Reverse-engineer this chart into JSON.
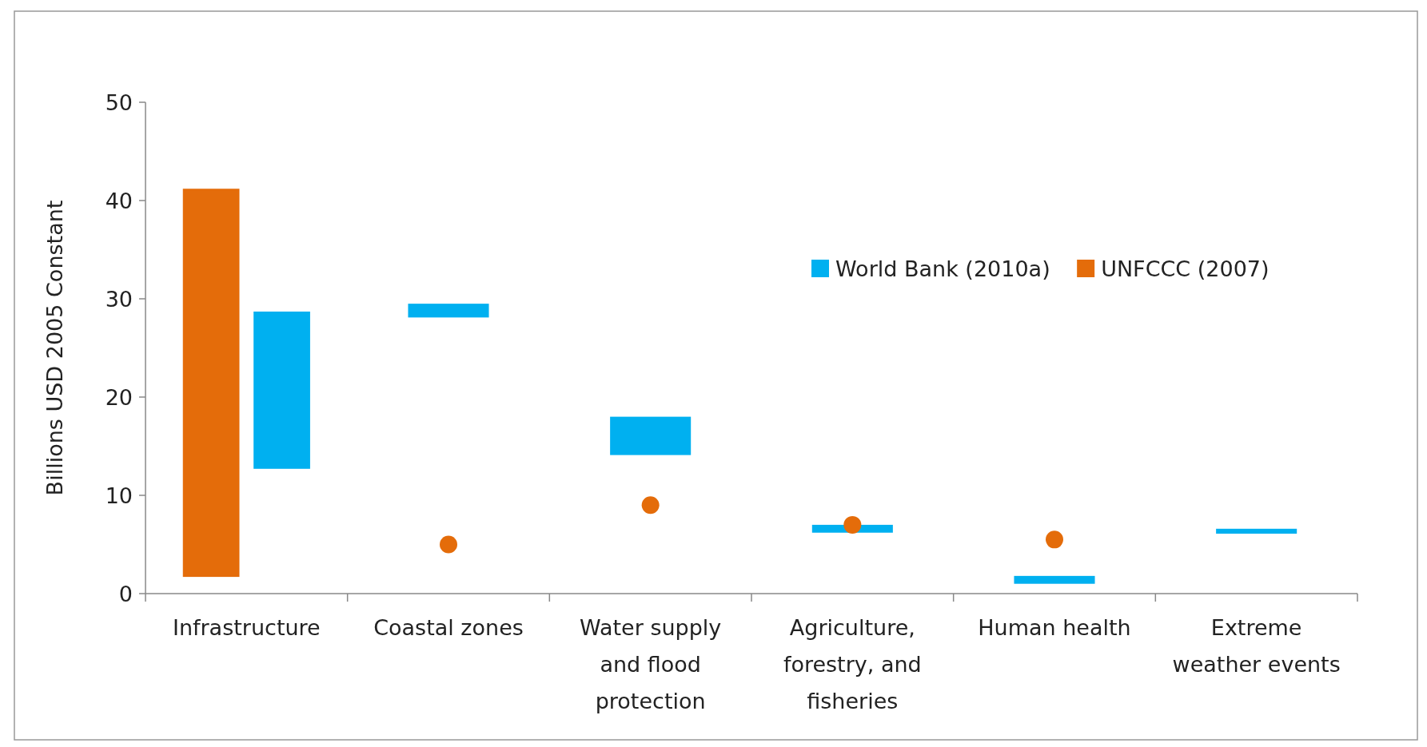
{
  "chart_data": {
    "type": "bar",
    "ylabel": "Billions USD 2005 Constant",
    "categories": [
      "Infrastructure",
      "Coastal zones",
      "Water supply and flood protection",
      "Agriculture, forestry, and fisheries",
      "Human health",
      "Extreme weather events"
    ],
    "series": [
      {
        "name": "UNFCCC (2007)",
        "color": "#e46c0a",
        "values": [
          39.5,
          null,
          null,
          null,
          null,
          null
        ],
        "base": [
          1.7,
          null,
          null,
          null,
          null,
          null
        ]
      },
      {
        "name": "World Bank (2010a)",
        "color": "#00b0f0",
        "values": [
          16,
          1.4,
          3.9,
          0.8,
          0.8,
          0.5
        ],
        "base": [
          12.7,
          28.1,
          14.1,
          6.2,
          1.0,
          6.1
        ]
      },
      {
        "type": "scatter",
        "color": "#e46c0a",
        "x": [
          "Coastal zones",
          "Water supply and flood protection",
          "Agriculture, forestry, and fisheries",
          "Human health"
        ],
        "values": [
          5.0,
          9.0,
          7.0,
          5.5
        ]
      }
    ],
    "ylim": [
      0,
      50
    ],
    "yticks": [
      0,
      10,
      20,
      30,
      40,
      50
    ],
    "legend": "top right",
    "grid": false,
    "marker": "circle"
  }
}
